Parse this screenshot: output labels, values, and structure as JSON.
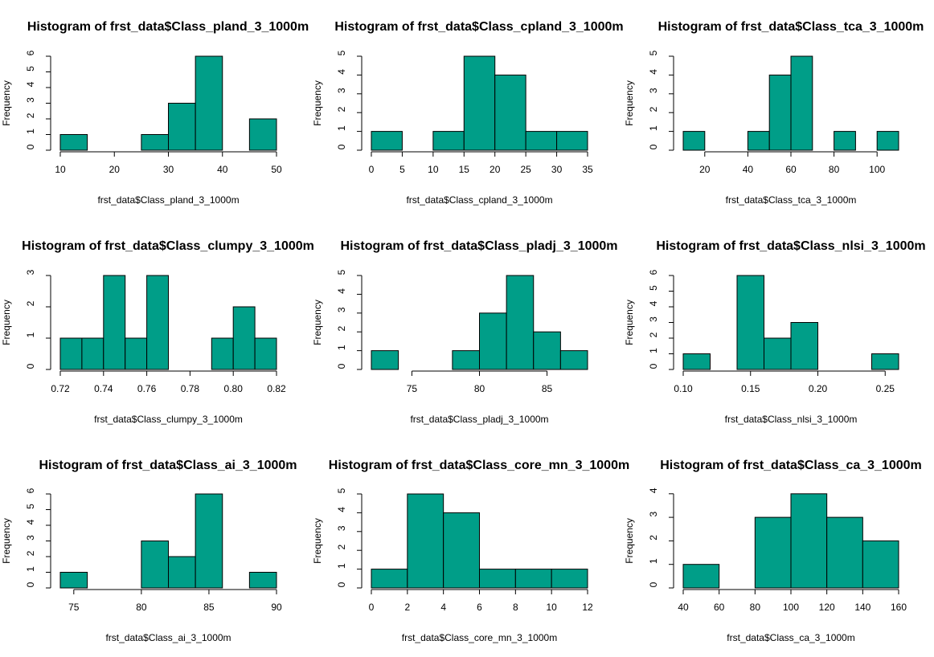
{
  "colors": {
    "bar_fill": "#009E88",
    "bar_stroke": "#000000",
    "axis": "#000000",
    "background": "#ffffff"
  },
  "chart_data": [
    {
      "type": "bar",
      "title": "Histogram of frst_data$Class_pland_3_1000m",
      "xlabel": "frst_data$Class_pland_3_1000m",
      "ylabel": "Frequency",
      "bins": [
        [
          10,
          15,
          1
        ],
        [
          25,
          30,
          1
        ],
        [
          30,
          35,
          3
        ],
        [
          35,
          40,
          6
        ],
        [
          45,
          50,
          2
        ]
      ],
      "xlim": [
        10,
        50
      ],
      "xticks": [
        10,
        20,
        30,
        40,
        50
      ],
      "xtick_labels": [
        "10",
        "20",
        "30",
        "40",
        "50"
      ],
      "ylim": [
        0,
        6
      ],
      "yticks": [
        0,
        1,
        2,
        3,
        4,
        5,
        6
      ],
      "ytick_labels": [
        "0",
        "1",
        "2",
        "3",
        "4",
        "5",
        "6"
      ]
    },
    {
      "type": "bar",
      "title": "Histogram of frst_data$Class_cpland_3_1000m",
      "xlabel": "frst_data$Class_cpland_3_1000m",
      "ylabel": "Frequency",
      "bins": [
        [
          0,
          5,
          1
        ],
        [
          10,
          15,
          1
        ],
        [
          15,
          20,
          5
        ],
        [
          20,
          25,
          4
        ],
        [
          25,
          30,
          1
        ],
        [
          30,
          35,
          1
        ]
      ],
      "xlim": [
        0,
        35
      ],
      "xticks": [
        0,
        5,
        10,
        15,
        20,
        25,
        30,
        35
      ],
      "xtick_labels": [
        "0",
        "5",
        "10",
        "15",
        "20",
        "25",
        "30",
        "35"
      ],
      "ylim": [
        0,
        5
      ],
      "yticks": [
        0,
        1,
        2,
        3,
        4,
        5
      ],
      "ytick_labels": [
        "0",
        "1",
        "2",
        "3",
        "4",
        "5"
      ]
    },
    {
      "type": "bar",
      "title": "Histogram of frst_data$Class_tca_3_1000m",
      "xlabel": "frst_data$Class_tca_3_1000m",
      "ylabel": "Frequency",
      "bins": [
        [
          10,
          20,
          1
        ],
        [
          40,
          50,
          1
        ],
        [
          50,
          60,
          4
        ],
        [
          60,
          70,
          5
        ],
        [
          80,
          90,
          1
        ],
        [
          100,
          110,
          1
        ]
      ],
      "xlim": [
        10,
        110
      ],
      "xticks": [
        20,
        40,
        60,
        80,
        100
      ],
      "xtick_labels": [
        "20",
        "40",
        "60",
        "80",
        "100"
      ],
      "ylim": [
        0,
        5
      ],
      "yticks": [
        0,
        1,
        2,
        3,
        4,
        5
      ],
      "ytick_labels": [
        "0",
        "1",
        "2",
        "3",
        "4",
        "5"
      ]
    },
    {
      "type": "bar",
      "title": "Histogram of frst_data$Class_clumpy_3_1000m",
      "xlabel": "frst_data$Class_clumpy_3_1000m",
      "ylabel": "Frequency",
      "bins": [
        [
          0.72,
          0.73,
          1
        ],
        [
          0.73,
          0.74,
          1
        ],
        [
          0.74,
          0.75,
          3
        ],
        [
          0.75,
          0.76,
          1
        ],
        [
          0.76,
          0.77,
          3
        ],
        [
          0.79,
          0.8,
          1
        ],
        [
          0.8,
          0.81,
          2
        ],
        [
          0.81,
          0.82,
          1
        ]
      ],
      "xlim": [
        0.72,
        0.82
      ],
      "xticks": [
        0.72,
        0.74,
        0.76,
        0.78,
        0.8,
        0.82
      ],
      "xtick_labels": [
        "0.72",
        "0.74",
        "0.76",
        "0.78",
        "0.80",
        "0.82"
      ],
      "ylim": [
        0,
        3
      ],
      "yticks": [
        0,
        1,
        2,
        3
      ],
      "ytick_labels": [
        "0",
        "1",
        "2",
        "3"
      ]
    },
    {
      "type": "bar",
      "title": "Histogram of frst_data$Class_pladj_3_1000m",
      "xlabel": "frst_data$Class_pladj_3_1000m",
      "ylabel": "Frequency",
      "bins": [
        [
          72,
          74,
          1
        ],
        [
          78,
          80,
          1
        ],
        [
          80,
          82,
          3
        ],
        [
          82,
          84,
          5
        ],
        [
          84,
          86,
          2
        ],
        [
          86,
          88,
          1
        ]
      ],
      "xlim": [
        72,
        88
      ],
      "xticks": [
        75,
        80,
        85
      ],
      "xtick_labels": [
        "75",
        "80",
        "85"
      ],
      "ylim": [
        0,
        5
      ],
      "yticks": [
        0,
        1,
        2,
        3,
        4,
        5
      ],
      "ytick_labels": [
        "0",
        "1",
        "2",
        "3",
        "4",
        "5"
      ]
    },
    {
      "type": "bar",
      "title": "Histogram of frst_data$Class_nlsi_3_1000m",
      "xlabel": "frst_data$Class_nlsi_3_1000m",
      "ylabel": "Frequency",
      "bins": [
        [
          0.1,
          0.12,
          1
        ],
        [
          0.14,
          0.16,
          6
        ],
        [
          0.16,
          0.18,
          2
        ],
        [
          0.18,
          0.2,
          3
        ],
        [
          0.24,
          0.26,
          1
        ]
      ],
      "xlim": [
        0.1,
        0.26
      ],
      "xticks": [
        0.1,
        0.15,
        0.2,
        0.25
      ],
      "xtick_labels": [
        "0.10",
        "0.15",
        "0.20",
        "0.25"
      ],
      "ylim": [
        0,
        6
      ],
      "yticks": [
        0,
        1,
        2,
        3,
        4,
        5,
        6
      ],
      "ytick_labels": [
        "0",
        "1",
        "2",
        "3",
        "4",
        "5",
        "6"
      ]
    },
    {
      "type": "bar",
      "title": "Histogram of frst_data$Class_ai_3_1000m",
      "xlabel": "frst_data$Class_ai_3_1000m",
      "ylabel": "Frequency",
      "bins": [
        [
          74,
          76,
          1
        ],
        [
          80,
          82,
          3
        ],
        [
          82,
          84,
          2
        ],
        [
          84,
          86,
          6
        ],
        [
          88,
          90,
          1
        ]
      ],
      "xlim": [
        74,
        90
      ],
      "xticks": [
        75,
        80,
        85,
        90
      ],
      "xtick_labels": [
        "75",
        "80",
        "85",
        "90"
      ],
      "ylim": [
        0,
        6
      ],
      "yticks": [
        0,
        1,
        2,
        3,
        4,
        5,
        6
      ],
      "ytick_labels": [
        "0",
        "1",
        "2",
        "3",
        "4",
        "5",
        "6"
      ]
    },
    {
      "type": "bar",
      "title": "Histogram of frst_data$Class_core_mn_3_1000m",
      "xlabel": "frst_data$Class_core_mn_3_1000m",
      "ylabel": "Frequency",
      "bins": [
        [
          0,
          2,
          1
        ],
        [
          2,
          4,
          5
        ],
        [
          4,
          6,
          4
        ],
        [
          6,
          8,
          1
        ],
        [
          8,
          10,
          1
        ],
        [
          10,
          12,
          1
        ]
      ],
      "xlim": [
        0,
        12
      ],
      "xticks": [
        0,
        2,
        4,
        6,
        8,
        10,
        12
      ],
      "xtick_labels": [
        "0",
        "2",
        "4",
        "6",
        "8",
        "10",
        "12"
      ],
      "ylim": [
        0,
        5
      ],
      "yticks": [
        0,
        1,
        2,
        3,
        4,
        5
      ],
      "ytick_labels": [
        "0",
        "1",
        "2",
        "3",
        "4",
        "5"
      ]
    },
    {
      "type": "bar",
      "title": "Histogram of frst_data$Class_ca_3_1000m",
      "xlabel": "frst_data$Class_ca_3_1000m",
      "ylabel": "Frequency",
      "bins": [
        [
          40,
          60,
          1
        ],
        [
          80,
          100,
          3
        ],
        [
          100,
          120,
          4
        ],
        [
          120,
          140,
          3
        ],
        [
          140,
          160,
          2
        ]
      ],
      "xlim": [
        40,
        160
      ],
      "xticks": [
        40,
        60,
        80,
        100,
        120,
        140,
        160
      ],
      "xtick_labels": [
        "40",
        "60",
        "80",
        "100",
        "120",
        "140",
        "160"
      ],
      "ylim": [
        0,
        4
      ],
      "yticks": [
        0,
        1,
        2,
        3,
        4
      ],
      "ytick_labels": [
        "0",
        "1",
        "2",
        "3",
        "4"
      ]
    }
  ]
}
